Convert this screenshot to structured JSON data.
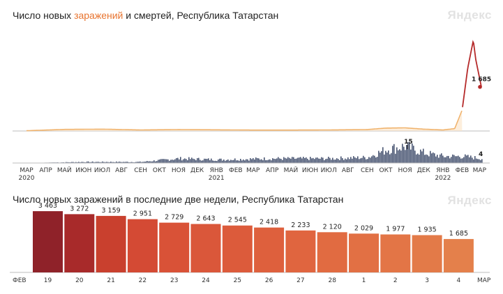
{
  "chart1": {
    "title_pre": "Число новых ",
    "title_hl": "заражений",
    "title_post": " и смертей, Республика Татарстан",
    "logo": "Яндекс",
    "colors": {
      "cases_old": "#f0b36d",
      "cases_new": "#b52a2a",
      "deaths": "#4a5673"
    },
    "case_peak_label": "1 685",
    "death_peak_label": "15",
    "death_last_label": "4",
    "month_ticks": [
      "МАР",
      "АПР",
      "МАЙ",
      "ИЮН",
      "ИЮЛ",
      "АВГ",
      "СЕН",
      "ОКТ",
      "НОЯ",
      "ДЕК",
      "ЯНВ",
      "ФЕВ",
      "МАР",
      "АПР",
      "МАЙ",
      "ИЮН",
      "ИЮЛ",
      "АВГ",
      "СЕН",
      "ОКТ",
      "НОЯ",
      "ДЕК",
      "ЯНВ",
      "ФЕВ",
      "МАР"
    ],
    "year_ticks": [
      "2020",
      "2021",
      "2022"
    ]
  },
  "chart2": {
    "title": "Число новых заражений в последние две недели, Республика Татарстан",
    "logo": "Яндекс",
    "left_label": "ФЕВ",
    "right_label": "МАР"
  },
  "chart_data": [
    {
      "type": "area",
      "title": "Число новых заражений и смертей, Республика Татарстан",
      "x_range": [
        "2020-03",
        "2022-03"
      ],
      "series": [
        {
          "name": "заражений",
          "x": [
            "2020-03",
            "2020-05",
            "2020-07",
            "2020-09",
            "2020-11",
            "2021-01",
            "2021-03",
            "2021-05",
            "2021-07",
            "2021-09",
            "2021-10",
            "2021-11",
            "2021-12",
            "2022-01",
            "2022-01-20",
            "2022-02-01",
            "2022-02-10",
            "2022-02-19",
            "2022-02-23",
            "2022-03-04"
          ],
          "values": [
            10,
            60,
            70,
            40,
            55,
            45,
            35,
            35,
            40,
            55,
            110,
            120,
            70,
            40,
            90,
            800,
            2400,
            3463,
            2729,
            1685
          ]
        },
        {
          "name": "смертей",
          "x": [
            "2020-03",
            "2020-06",
            "2020-09",
            "2020-11",
            "2021-01",
            "2021-04",
            "2021-07",
            "2021-09",
            "2021-10",
            "2021-11",
            "2021-12",
            "2022-01",
            "2022-02",
            "2022-03-04"
          ],
          "values": [
            0,
            1,
            1,
            4,
            3,
            4,
            4,
            5,
            12,
            15,
            9,
            6,
            6,
            4
          ]
        }
      ]
    },
    {
      "type": "bar",
      "title": "Число новых заражений в последние две недели, Республика Татарстан",
      "categories": [
        "19",
        "20",
        "21",
        "22",
        "23",
        "24",
        "25",
        "26",
        "27",
        "28",
        "1",
        "2",
        "3",
        "4"
      ],
      "values": [
        3463,
        3272,
        3159,
        2951,
        2729,
        2643,
        2545,
        2418,
        2233,
        2120,
        2029,
        1977,
        1935,
        1685
      ],
      "value_labels": [
        "3 463",
        "3 272",
        "3 159",
        "2 951",
        "2 729",
        "2 643",
        "2 545",
        "2 418",
        "2 233",
        "2 120",
        "2 029",
        "1 977",
        "1 935",
        "1 685"
      ],
      "weekend": [
        true,
        true,
        false,
        false,
        false,
        false,
        false,
        true,
        true,
        false,
        false,
        false,
        false,
        false
      ],
      "bar_colors": [
        "#8f2229",
        "#a82a2a",
        "#c9402e",
        "#d44a34",
        "#d95237",
        "#da573a",
        "#dc5b3b",
        "#de603d",
        "#e0653f",
        "#e16b41",
        "#e27044",
        "#e37546",
        "#e37a48",
        "#e4804b"
      ],
      "ylim": [
        0,
        3600
      ]
    }
  ]
}
